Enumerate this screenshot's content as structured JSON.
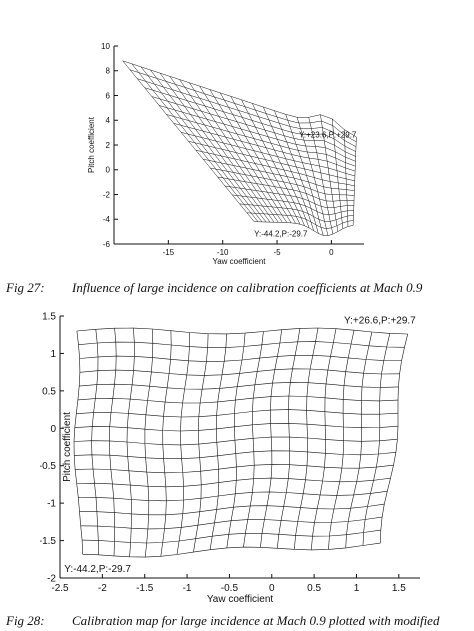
{
  "figure1": {
    "caption_number": "Fig 27:",
    "caption_text": "Influence of large incidence on calibration coefficients at Mach 0.9",
    "chart_data": {
      "type": "mesh",
      "xlabel": "Yaw coefficient",
      "ylabel": "Pitch coefficient",
      "xlim": [
        -20,
        3
      ],
      "ylim": [
        -6,
        10
      ],
      "xticks": [
        "-15",
        "-10",
        "-5",
        "0"
      ],
      "yticks": [
        "10",
        "8",
        "6",
        "4",
        "2",
        "0",
        "-2",
        "-4",
        "-6"
      ],
      "annotations": [
        {
          "text": "Y:+23.6,P:+29.7",
          "x": 2.3,
          "y": 2.6
        },
        {
          "text": "Y:-44.2,P:-29.7",
          "x": -2.2,
          "y": -5.4
        }
      ],
      "corners": {
        "tip": [
          -19.2,
          8.8
        ],
        "top_right": [
          2.3,
          2.6
        ],
        "bottom_left": [
          -7.1,
          -4.2
        ],
        "bottom_right": [
          2.0,
          -4.4
        ]
      },
      "grid": "off"
    }
  },
  "figure2": {
    "caption_number": "Fig 28:",
    "caption_text": "Calibration map for large incidence at Mach 0.9 plotted with modified",
    "chart_data": {
      "type": "mesh",
      "xlabel": "Yaw coefficient",
      "ylabel": "Pitch coefficient",
      "xlim": [
        -2.5,
        1.75
      ],
      "ylim": [
        -2,
        1.5
      ],
      "xticks": [
        "-2.5",
        "-2",
        "-1.5",
        "-1",
        "-0.5",
        "0",
        "0.5",
        "1",
        "1.5"
      ],
      "yticks": [
        "1.5",
        "1",
        "0.5",
        "0",
        "-0.5",
        "-1",
        "-1.5",
        "-2"
      ],
      "annotations": [
        {
          "text": "Y:+26.6,P:+29.7",
          "x": 1.7,
          "y": 1.4
        },
        {
          "text": "Y:-44.2,P:-29.7",
          "x": -2.45,
          "y": -1.92
        }
      ],
      "corners": {
        "top_left": [
          -2.3,
          1.3
        ],
        "top_right": [
          1.6,
          1.3
        ],
        "bottom_left": [
          -2.3,
          -1.72
        ],
        "bottom_right": [
          1.3,
          -1.55
        ]
      },
      "grid": "off"
    }
  }
}
